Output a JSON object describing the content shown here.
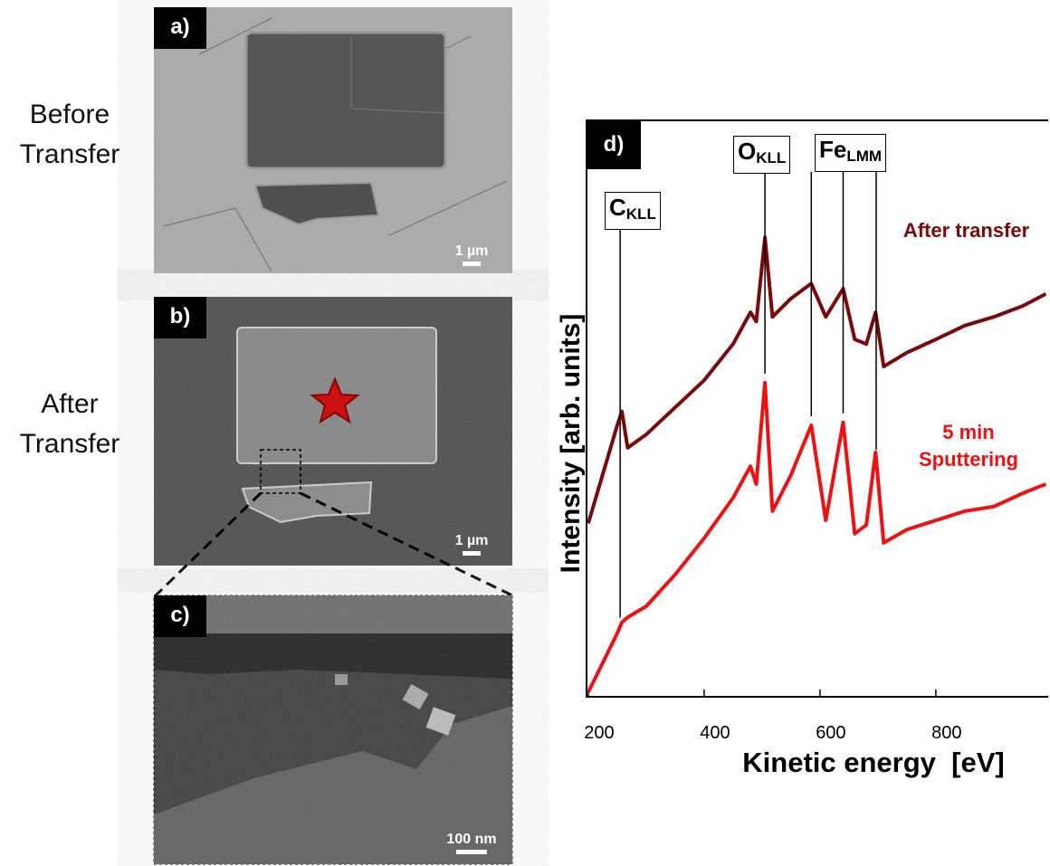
{
  "panels": [
    {
      "label": "a)",
      "side_text": "Before Transfer",
      "scale_bar": "1 µm"
    },
    {
      "label": "b)",
      "side_text": "After Transfer",
      "scale_bar": "1 µm"
    },
    {
      "label": "c)",
      "scale_bar": "100 nm"
    }
  ],
  "chart_data": {
    "type": "line",
    "label": "d)",
    "x_label": "Kinetic energy  [eV]",
    "y_label": "Intensity [arb. units]",
    "x": [
      200,
      250,
      258,
      268,
      300,
      350,
      400,
      450,
      480,
      490,
      505,
      518,
      550,
      585,
      610,
      640,
      660,
      680,
      696,
      710,
      750,
      800,
      850,
      900,
      950,
      990
    ],
    "series": [
      {
        "name": "After transfer",
        "color": "#7a0a0a",
        "values": [
          30.1,
          47.1,
          49.5,
          43.2,
          45.5,
          50.2,
          54.9,
          61.2,
          66.7,
          65.1,
          79.7,
          65.9,
          69.1,
          71.7,
          65.9,
          70.8,
          62.0,
          61.2,
          66.7,
          57.3,
          59.7,
          62.0,
          64.4,
          65.9,
          67.8,
          69.9
        ]
      },
      {
        "name": "5 min Sputtering",
        "color": "#ee1111",
        "values": [
          0.8,
          11.0,
          12.9,
          13.8,
          15.7,
          21.2,
          27.5,
          34.5,
          40.0,
          36.9,
          54.5,
          32.2,
          38.5,
          47.1,
          30.6,
          47.6,
          28.3,
          29.8,
          42.4,
          26.7,
          29.0,
          30.6,
          32.2,
          33.0,
          35.3,
          36.9
        ]
      }
    ],
    "annotations": [
      {
        "text": "C",
        "sub": "KLL",
        "x": [
          255
        ]
      },
      {
        "text": "O",
        "sub": "KLL",
        "x": [
          505
        ]
      },
      {
        "text": "Fe",
        "sub": "LMM",
        "x": [
          585,
          640,
          697
        ]
      }
    ],
    "xlim": [
      197,
      994
    ],
    "xticks": [
      200,
      400,
      600,
      800
    ],
    "ylim": [
      0,
      100
    ]
  }
}
